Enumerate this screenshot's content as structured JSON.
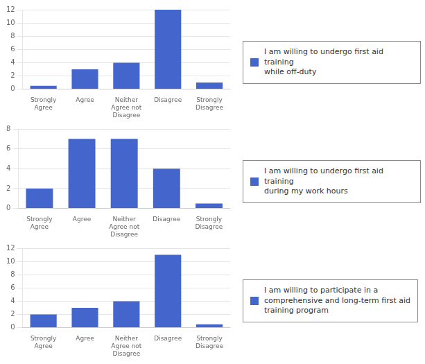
{
  "chart_data": [
    {
      "type": "bar",
      "categories": [
        "Strongly\nAgree",
        "Agree",
        "Neither\nAgree not\nDisagree",
        "Disagree",
        "Strongly\nDisagree"
      ],
      "series": [
        {
          "name": "I am willing to undergo first aid training\nwhile off-duty",
          "color": "#4466CC",
          "values": [
            0.5,
            3,
            4,
            12,
            1
          ]
        }
      ],
      "ylim": [
        0,
        12
      ],
      "yticks": [
        0,
        2,
        4,
        6,
        8,
        10,
        12
      ],
      "grid": true,
      "legend": "right"
    },
    {
      "type": "bar",
      "categories": [
        "Strongly\nAgree",
        "Agree",
        "Neither\nAgree not\nDisagree",
        "Disagree",
        "Strongly\nDisagree"
      ],
      "series": [
        {
          "name": "I am willing to undergo first aid training\nduring my work hours",
          "color": "#4466CC",
          "values": [
            2,
            7,
            7,
            4,
            0.5
          ]
        }
      ],
      "ylim": [
        0,
        8
      ],
      "yticks": [
        0,
        2,
        4,
        6,
        8
      ],
      "grid": true,
      "legend": "right"
    },
    {
      "type": "bar",
      "categories": [
        "Strongly\nAgree",
        "Agree",
        "Neither\nAgree not\nDisagree",
        "Disagree",
        "Strongly\nDisagree"
      ],
      "series": [
        {
          "name": "I am willing to participate in a\ncomprehensive and long-term first aid\ntraining program",
          "color": "#4466CC",
          "values": [
            2,
            3,
            4,
            11,
            0.5
          ]
        }
      ],
      "ylim": [
        0,
        12
      ],
      "yticks": [
        0,
        2,
        4,
        6,
        8,
        10,
        12
      ],
      "grid": true,
      "legend": "right"
    }
  ]
}
